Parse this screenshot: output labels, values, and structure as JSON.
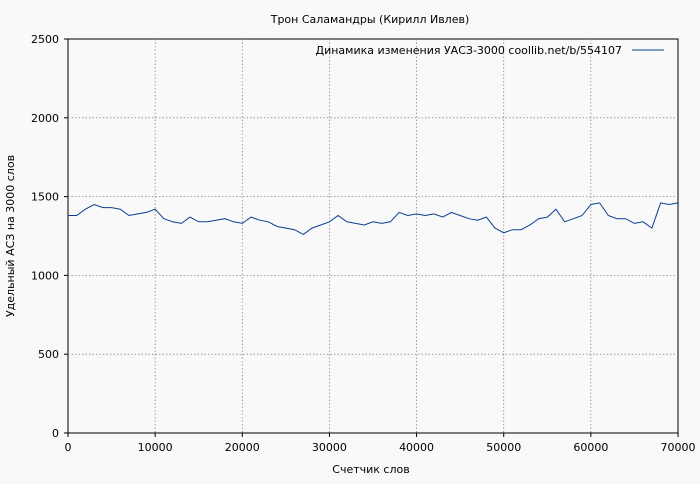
{
  "chart_data": {
    "type": "line",
    "title": "Трон Саламандры (Кирилл Ивлев)",
    "xlabel": "Счетчик слов",
    "ylabel": "Удельный АСЗ на 3000 слов",
    "xlim": [
      0,
      70000
    ],
    "ylim": [
      0,
      2500
    ],
    "xticks": [
      0,
      10000,
      20000,
      30000,
      40000,
      50000,
      60000,
      70000
    ],
    "yticks": [
      0,
      500,
      1000,
      1500,
      2000,
      2500
    ],
    "grid": true,
    "legend_position": "top-right",
    "series": [
      {
        "name": "Динамика изменения УАСЗ-3000  coollib.net/b/554107",
        "color": "#0b3d91",
        "x": [
          0,
          1000,
          2000,
          3000,
          4000,
          5000,
          6000,
          7000,
          8000,
          9000,
          10000,
          11000,
          12000,
          13000,
          14000,
          15000,
          16000,
          17000,
          18000,
          19000,
          20000,
          21000,
          22000,
          23000,
          24000,
          25000,
          26000,
          27000,
          28000,
          29000,
          30000,
          31000,
          32000,
          33000,
          34000,
          35000,
          36000,
          37000,
          38000,
          39000,
          40000,
          41000,
          42000,
          43000,
          44000,
          45000,
          46000,
          47000,
          48000,
          49000,
          50000,
          51000,
          52000,
          53000,
          54000,
          55000,
          56000,
          57000,
          58000,
          59000,
          60000,
          61000,
          62000,
          63000,
          64000,
          65000,
          66000,
          67000,
          68000,
          69000,
          70000
        ],
        "y": [
          1380,
          1380,
          1420,
          1450,
          1430,
          1430,
          1420,
          1380,
          1390,
          1400,
          1420,
          1360,
          1340,
          1330,
          1370,
          1340,
          1340,
          1350,
          1360,
          1340,
          1330,
          1370,
          1350,
          1340,
          1310,
          1300,
          1290,
          1260,
          1300,
          1320,
          1340,
          1380,
          1340,
          1330,
          1320,
          1340,
          1330,
          1340,
          1400,
          1380,
          1390,
          1380,
          1390,
          1370,
          1400,
          1380,
          1360,
          1350,
          1370,
          1300,
          1270,
          1290,
          1290,
          1320,
          1360,
          1370,
          1420,
          1340,
          1360,
          1380,
          1450,
          1460,
          1380,
          1360,
          1360,
          1330,
          1340,
          1300,
          1460,
          1450,
          1460
        ]
      }
    ]
  }
}
